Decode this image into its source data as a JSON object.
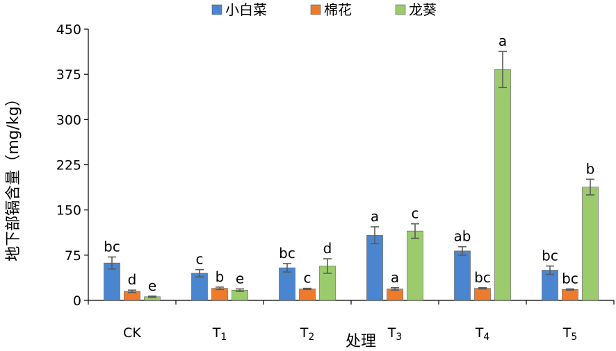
{
  "chart_data": {
    "type": "bar",
    "xlabel": "处理",
    "ylabel": "地下部镉含量（mg/kg）",
    "ylim": [
      0,
      450
    ],
    "yticks": [
      "0",
      "75",
      "150",
      "225",
      "300",
      "375",
      "450"
    ],
    "categories": [
      {
        "base": "CK",
        "sub": ""
      },
      {
        "base": "T",
        "sub": "1"
      },
      {
        "base": "T",
        "sub": "2"
      },
      {
        "base": "T",
        "sub": "3"
      },
      {
        "base": "T",
        "sub": "4"
      },
      {
        "base": "T",
        "sub": "5"
      }
    ],
    "legend_position": "top-center",
    "series": [
      {
        "name": "小白菜",
        "color": "#4A86D0",
        "values": [
          62,
          45,
          54,
          108,
          82,
          50
        ],
        "errors": [
          10,
          6,
          7,
          14,
          7,
          7
        ],
        "letters": [
          "bc",
          "c",
          "bc",
          "a",
          "ab",
          "bc"
        ]
      },
      {
        "name": "棉花",
        "color": "#EE7B2C",
        "values": [
          15,
          20,
          19,
          19,
          20,
          18
        ],
        "errors": [
          2,
          2,
          1,
          2,
          1,
          1
        ],
        "letters": [
          "d",
          "b",
          "c",
          "a",
          "bc",
          "bc"
        ]
      },
      {
        "name": "龙葵",
        "color": "#9BCB6D",
        "values": [
          6,
          17,
          57,
          115,
          383,
          188
        ],
        "errors": [
          1,
          2,
          12,
          12,
          30,
          13
        ],
        "letters": [
          "e",
          "e",
          "d",
          "c",
          "a",
          "b"
        ]
      }
    ]
  }
}
